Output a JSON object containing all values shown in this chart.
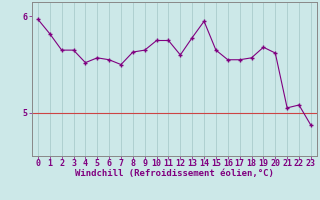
{
  "x": [
    0,
    1,
    2,
    3,
    4,
    5,
    6,
    7,
    8,
    9,
    10,
    11,
    12,
    13,
    14,
    15,
    16,
    17,
    18,
    19,
    20,
    21,
    22,
    23
  ],
  "y": [
    5.97,
    5.82,
    5.65,
    5.65,
    5.52,
    5.57,
    5.55,
    5.5,
    5.63,
    5.65,
    5.75,
    5.75,
    5.6,
    5.78,
    5.95,
    5.65,
    5.55,
    5.55,
    5.57,
    5.68,
    5.62,
    5.05,
    5.08,
    4.87
  ],
  "line_color": "#800080",
  "marker": "D",
  "marker_size": 2,
  "bg_color": "#cce8e8",
  "grid_color": "#aacccc",
  "spine_color": "#888888",
  "tick_color": "#800080",
  "xlabel": "Windchill (Refroidissement éolien,°C)",
  "xlabel_color": "#800080",
  "xlabel_fontsize": 6.5,
  "ytick_labels": [
    "5",
    "6"
  ],
  "ytick_values": [
    5,
    6
  ],
  "ylim": [
    4.55,
    6.15
  ],
  "xlim": [
    -0.5,
    23.5
  ],
  "hline_y": 5,
  "hline_color": "#cc4444",
  "tick_fontsize": 6.0
}
